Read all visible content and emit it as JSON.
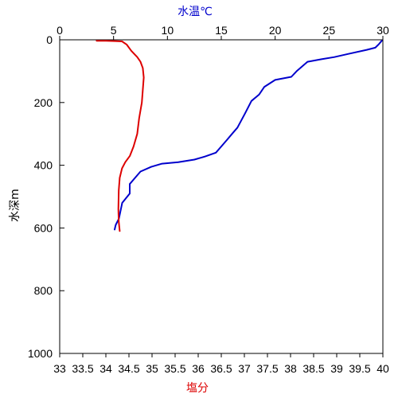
{
  "chart_data": {
    "type": "line",
    "title": "",
    "top_axis_label": "水温℃",
    "bottom_axis_label": "塩分",
    "y_axis_label": "水深m",
    "y_range": [
      0,
      1000
    ],
    "y_ticks": [
      "0",
      "200",
      "400",
      "600",
      "800",
      "1000"
    ],
    "top_range": [
      0,
      30
    ],
    "top_ticks": [
      "0",
      "5",
      "10",
      "15",
      "20",
      "25",
      "30"
    ],
    "bottom_range": [
      33,
      40
    ],
    "bottom_ticks": [
      "33",
      "33.5",
      "34",
      "34.5",
      "35",
      "35.5",
      "36",
      "36.5",
      "37",
      "37.5",
      "38",
      "38.5",
      "39",
      "39.5",
      "40"
    ],
    "grid": false,
    "legend": "none",
    "colors": {
      "temperature": "#0000cc",
      "salinity": "#dd0000",
      "top_axis_label": "#0000cc",
      "bottom_axis_label": "#dd0000"
    },
    "series": [
      {
        "axis": "top",
        "color": "#0000cc",
        "points": [
          [
            29.9,
            3
          ],
          [
            29.6,
            15
          ],
          [
            29.3,
            25
          ],
          [
            28.5,
            32
          ],
          [
            26.8,
            45
          ],
          [
            25.5,
            55
          ],
          [
            24.3,
            62
          ],
          [
            23.0,
            70
          ],
          [
            22.5,
            85
          ],
          [
            22.0,
            100
          ],
          [
            21.5,
            118
          ],
          [
            20.0,
            128
          ],
          [
            19.0,
            150
          ],
          [
            18.5,
            175
          ],
          [
            17.8,
            195
          ],
          [
            17.2,
            235
          ],
          [
            16.5,
            280
          ],
          [
            16.0,
            300
          ],
          [
            15.5,
            320
          ],
          [
            15.0,
            340
          ],
          [
            14.5,
            360
          ],
          [
            13.5,
            372
          ],
          [
            12.5,
            382
          ],
          [
            11.0,
            390
          ],
          [
            9.5,
            395
          ],
          [
            8.5,
            405
          ],
          [
            7.5,
            420
          ],
          [
            7.0,
            440
          ],
          [
            6.5,
            460
          ],
          [
            6.5,
            490
          ],
          [
            5.8,
            520
          ],
          [
            5.5,
            570
          ],
          [
            5.2,
            590
          ],
          [
            5.1,
            605
          ]
        ]
      },
      {
        "axis": "bottom",
        "color": "#dd0000",
        "points": [
          [
            33.8,
            3
          ],
          [
            34.0,
            3
          ],
          [
            34.2,
            4
          ],
          [
            34.35,
            5
          ],
          [
            34.45,
            15
          ],
          [
            34.55,
            35
          ],
          [
            34.68,
            55
          ],
          [
            34.75,
            70
          ],
          [
            34.8,
            90
          ],
          [
            34.82,
            120
          ],
          [
            34.8,
            160
          ],
          [
            34.78,
            200
          ],
          [
            34.72,
            250
          ],
          [
            34.68,
            300
          ],
          [
            34.6,
            340
          ],
          [
            34.52,
            370
          ],
          [
            34.42,
            390
          ],
          [
            34.35,
            410
          ],
          [
            34.3,
            440
          ],
          [
            34.28,
            480
          ],
          [
            34.27,
            540
          ],
          [
            34.28,
            580
          ],
          [
            34.3,
            610
          ]
        ]
      }
    ]
  }
}
